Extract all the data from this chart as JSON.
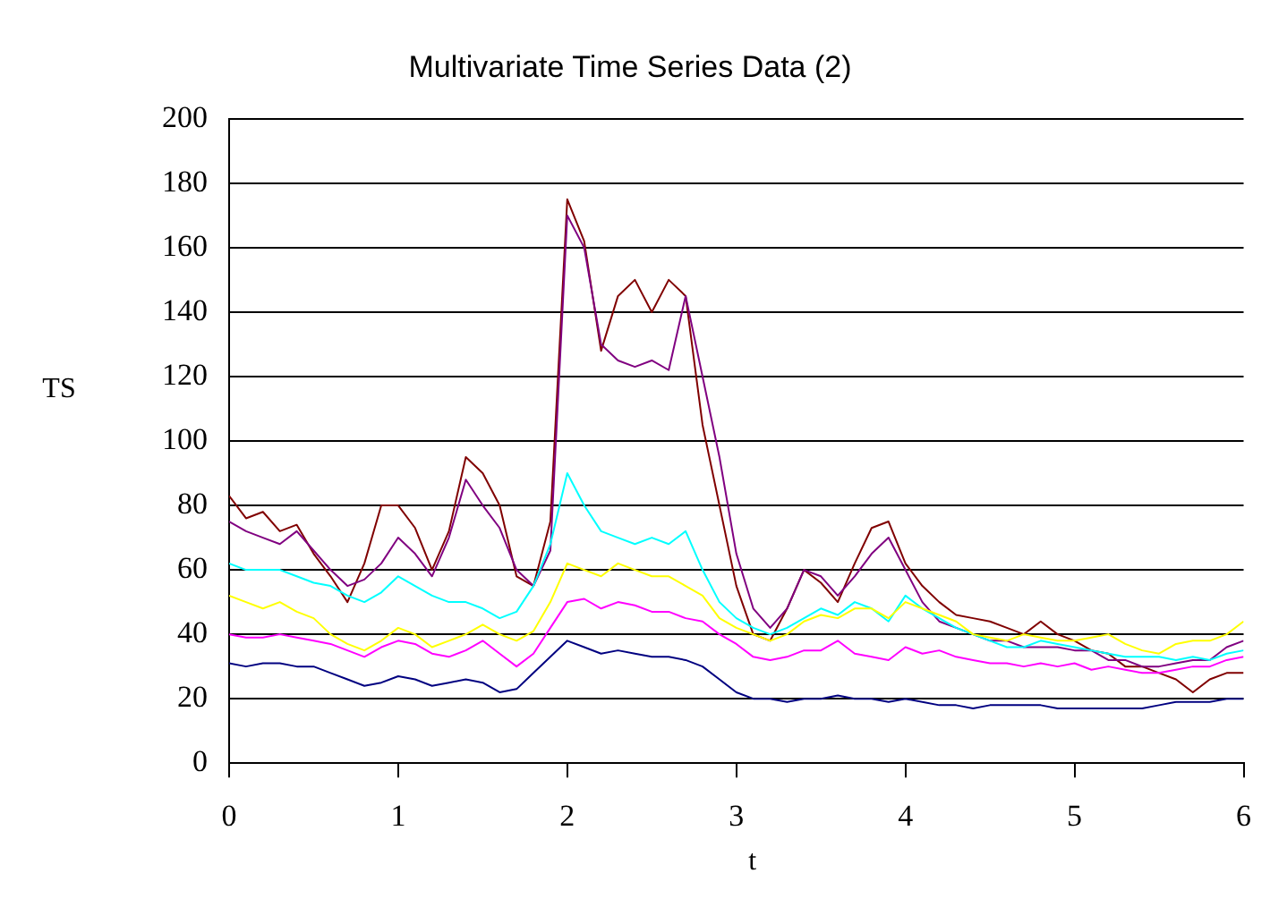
{
  "chart_data": {
    "type": "line",
    "title": "Multivariate Time Series Data (2)",
    "xlabel": "t",
    "ylabel": "TS",
    "x": [
      0,
      0.1,
      0.2,
      0.3,
      0.4,
      0.5,
      0.6,
      0.7,
      0.8,
      0.9,
      1,
      1.1,
      1.2,
      1.3,
      1.4,
      1.5,
      1.6,
      1.7,
      1.8,
      1.9,
      2,
      2.1,
      2.2,
      2.3,
      2.4,
      2.5,
      2.6,
      2.7,
      2.8,
      2.9,
      3,
      3.1,
      3.2,
      3.3,
      3.4,
      3.5,
      3.6,
      3.7,
      3.8,
      3.9,
      4,
      4.1,
      4.2,
      4.3,
      4.4,
      4.5,
      4.6,
      4.7,
      4.8,
      4.9,
      5,
      5.1,
      5.2,
      5.3,
      5.4,
      5.5,
      5.6,
      5.7,
      5.8,
      5.9,
      6
    ],
    "series": [
      {
        "color": "#000080",
        "values": [
          31,
          30,
          31,
          31,
          30,
          30,
          28,
          26,
          24,
          25,
          27,
          26,
          24,
          25,
          26,
          25,
          22,
          23,
          28,
          33,
          38,
          36,
          34,
          35,
          34,
          33,
          33,
          32,
          30,
          26,
          22,
          20,
          20,
          19,
          20,
          20,
          21,
          20,
          20,
          19,
          20,
          19,
          18,
          18,
          17,
          18,
          18,
          18,
          18,
          17,
          17,
          17,
          17,
          17,
          17,
          18,
          19,
          19,
          19,
          20,
          20
        ]
      },
      {
        "color": "#ff00ff",
        "values": [
          40,
          39,
          39,
          40,
          39,
          38,
          37,
          35,
          33,
          36,
          38,
          37,
          34,
          33,
          35,
          38,
          34,
          30,
          34,
          42,
          50,
          51,
          48,
          50,
          49,
          47,
          47,
          45,
          44,
          40,
          37,
          33,
          32,
          33,
          35,
          35,
          38,
          34,
          33,
          32,
          36,
          34,
          35,
          33,
          32,
          31,
          31,
          30,
          31,
          30,
          31,
          29,
          30,
          29,
          28,
          28,
          29,
          30,
          30,
          32,
          33
        ]
      },
      {
        "color": "#ffff00",
        "values": [
          52,
          50,
          48,
          50,
          47,
          45,
          40,
          37,
          35,
          38,
          42,
          40,
          36,
          38,
          40,
          43,
          40,
          38,
          41,
          50,
          62,
          60,
          58,
          62,
          60,
          58,
          58,
          55,
          52,
          45,
          42,
          40,
          38,
          40,
          44,
          46,
          45,
          48,
          48,
          45,
          50,
          48,
          46,
          44,
          40,
          39,
          38,
          40,
          39,
          38,
          38,
          39,
          40,
          37,
          35,
          34,
          37,
          38,
          38,
          40,
          44
        ]
      },
      {
        "color": "#00ffff",
        "values": [
          62,
          60,
          60,
          60,
          58,
          56,
          55,
          52,
          50,
          53,
          58,
          55,
          52,
          50,
          50,
          48,
          45,
          47,
          55,
          68,
          90,
          80,
          72,
          70,
          68,
          70,
          68,
          72,
          60,
          50,
          45,
          42,
          40,
          42,
          45,
          48,
          46,
          50,
          48,
          44,
          52,
          48,
          45,
          42,
          40,
          38,
          36,
          36,
          38,
          37,
          36,
          35,
          34,
          33,
          33,
          33,
          32,
          33,
          32,
          34,
          35
        ]
      },
      {
        "color": "#800080",
        "values": [
          75,
          72,
          70,
          68,
          72,
          66,
          60,
          55,
          57,
          62,
          70,
          65,
          58,
          70,
          88,
          80,
          73,
          60,
          55,
          66,
          170,
          160,
          130,
          125,
          123,
          125,
          122,
          145,
          120,
          95,
          65,
          48,
          42,
          48,
          60,
          58,
          52,
          58,
          65,
          70,
          60,
          50,
          44,
          42,
          40,
          38,
          38,
          36,
          36,
          36,
          35,
          35,
          32,
          32,
          30,
          30,
          31,
          32,
          32,
          36,
          38
        ]
      },
      {
        "color": "#800000",
        "values": [
          83,
          76,
          78,
          72,
          74,
          65,
          58,
          50,
          62,
          80,
          80,
          73,
          60,
          72,
          95,
          90,
          80,
          58,
          55,
          75,
          175,
          162,
          128,
          145,
          150,
          140,
          150,
          145,
          105,
          80,
          55,
          40,
          38,
          48,
          60,
          56,
          50,
          62,
          73,
          75,
          62,
          55,
          50,
          46,
          45,
          44,
          42,
          40,
          44,
          40,
          38,
          35,
          34,
          30,
          30,
          28,
          26,
          22,
          26,
          28,
          28
        ]
      }
    ],
    "xlim": [
      0,
      6
    ],
    "xticks": [
      0,
      1,
      2,
      3,
      4,
      5,
      6
    ],
    "ylim": [
      0,
      200
    ],
    "yticks": [
      0,
      20,
      40,
      60,
      80,
      100,
      120,
      140,
      160,
      180,
      200
    ],
    "grid": "y"
  }
}
